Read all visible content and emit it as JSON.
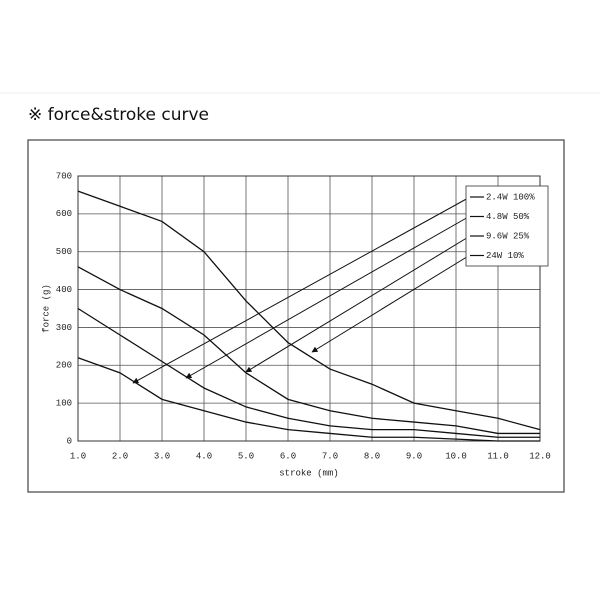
{
  "chart_data": {
    "type": "line",
    "title": "※ force&stroke curve",
    "x_label": "stroke (mm)",
    "y_label": "force (g)",
    "x": [
      1,
      2,
      3,
      4,
      5,
      6,
      7,
      8,
      9,
      10,
      11,
      12
    ],
    "series": [
      {
        "name": "2.4W 100%",
        "color": "#111111",
        "values": [
          660,
          620,
          580,
          500,
          370,
          260,
          190,
          150,
          100,
          80,
          60,
          30
        ]
      },
      {
        "name": "4.8W 50%",
        "color": "#111111",
        "values": [
          460,
          400,
          350,
          280,
          180,
          110,
          80,
          60,
          50,
          40,
          20,
          20
        ]
      },
      {
        "name": "9.6W 25%",
        "color": "#111111",
        "values": [
          350,
          280,
          210,
          140,
          90,
          60,
          40,
          30,
          30,
          20,
          10,
          10
        ]
      },
      {
        "name": "24W 10%",
        "color": "#111111",
        "values": [
          220,
          180,
          110,
          80,
          50,
          30,
          20,
          10,
          10,
          5,
          0,
          0
        ]
      }
    ],
    "xlim": [
      1,
      12
    ],
    "xticks": [
      {
        "value": 1,
        "label": "1.0"
      },
      {
        "value": 2,
        "label": "2.0"
      },
      {
        "value": 3,
        "label": "3.0"
      },
      {
        "value": 4,
        "label": "4.0"
      },
      {
        "value": 5,
        "label": "5.0"
      },
      {
        "value": 6,
        "label": "6.0"
      },
      {
        "value": 7,
        "label": "7.0"
      },
      {
        "value": 8,
        "label": "8.0"
      },
      {
        "value": 9,
        "label": "9.0"
      },
      {
        "value": 10,
        "label": "10.0"
      },
      {
        "value": 11,
        "label": "11.0"
      },
      {
        "value": 12,
        "label": "12.0"
      }
    ],
    "ylim": [
      0,
      700
    ],
    "yticks": [
      0,
      100,
      200,
      300,
      400,
      500,
      600,
      700
    ],
    "grid": true,
    "legend": "top-right"
  }
}
